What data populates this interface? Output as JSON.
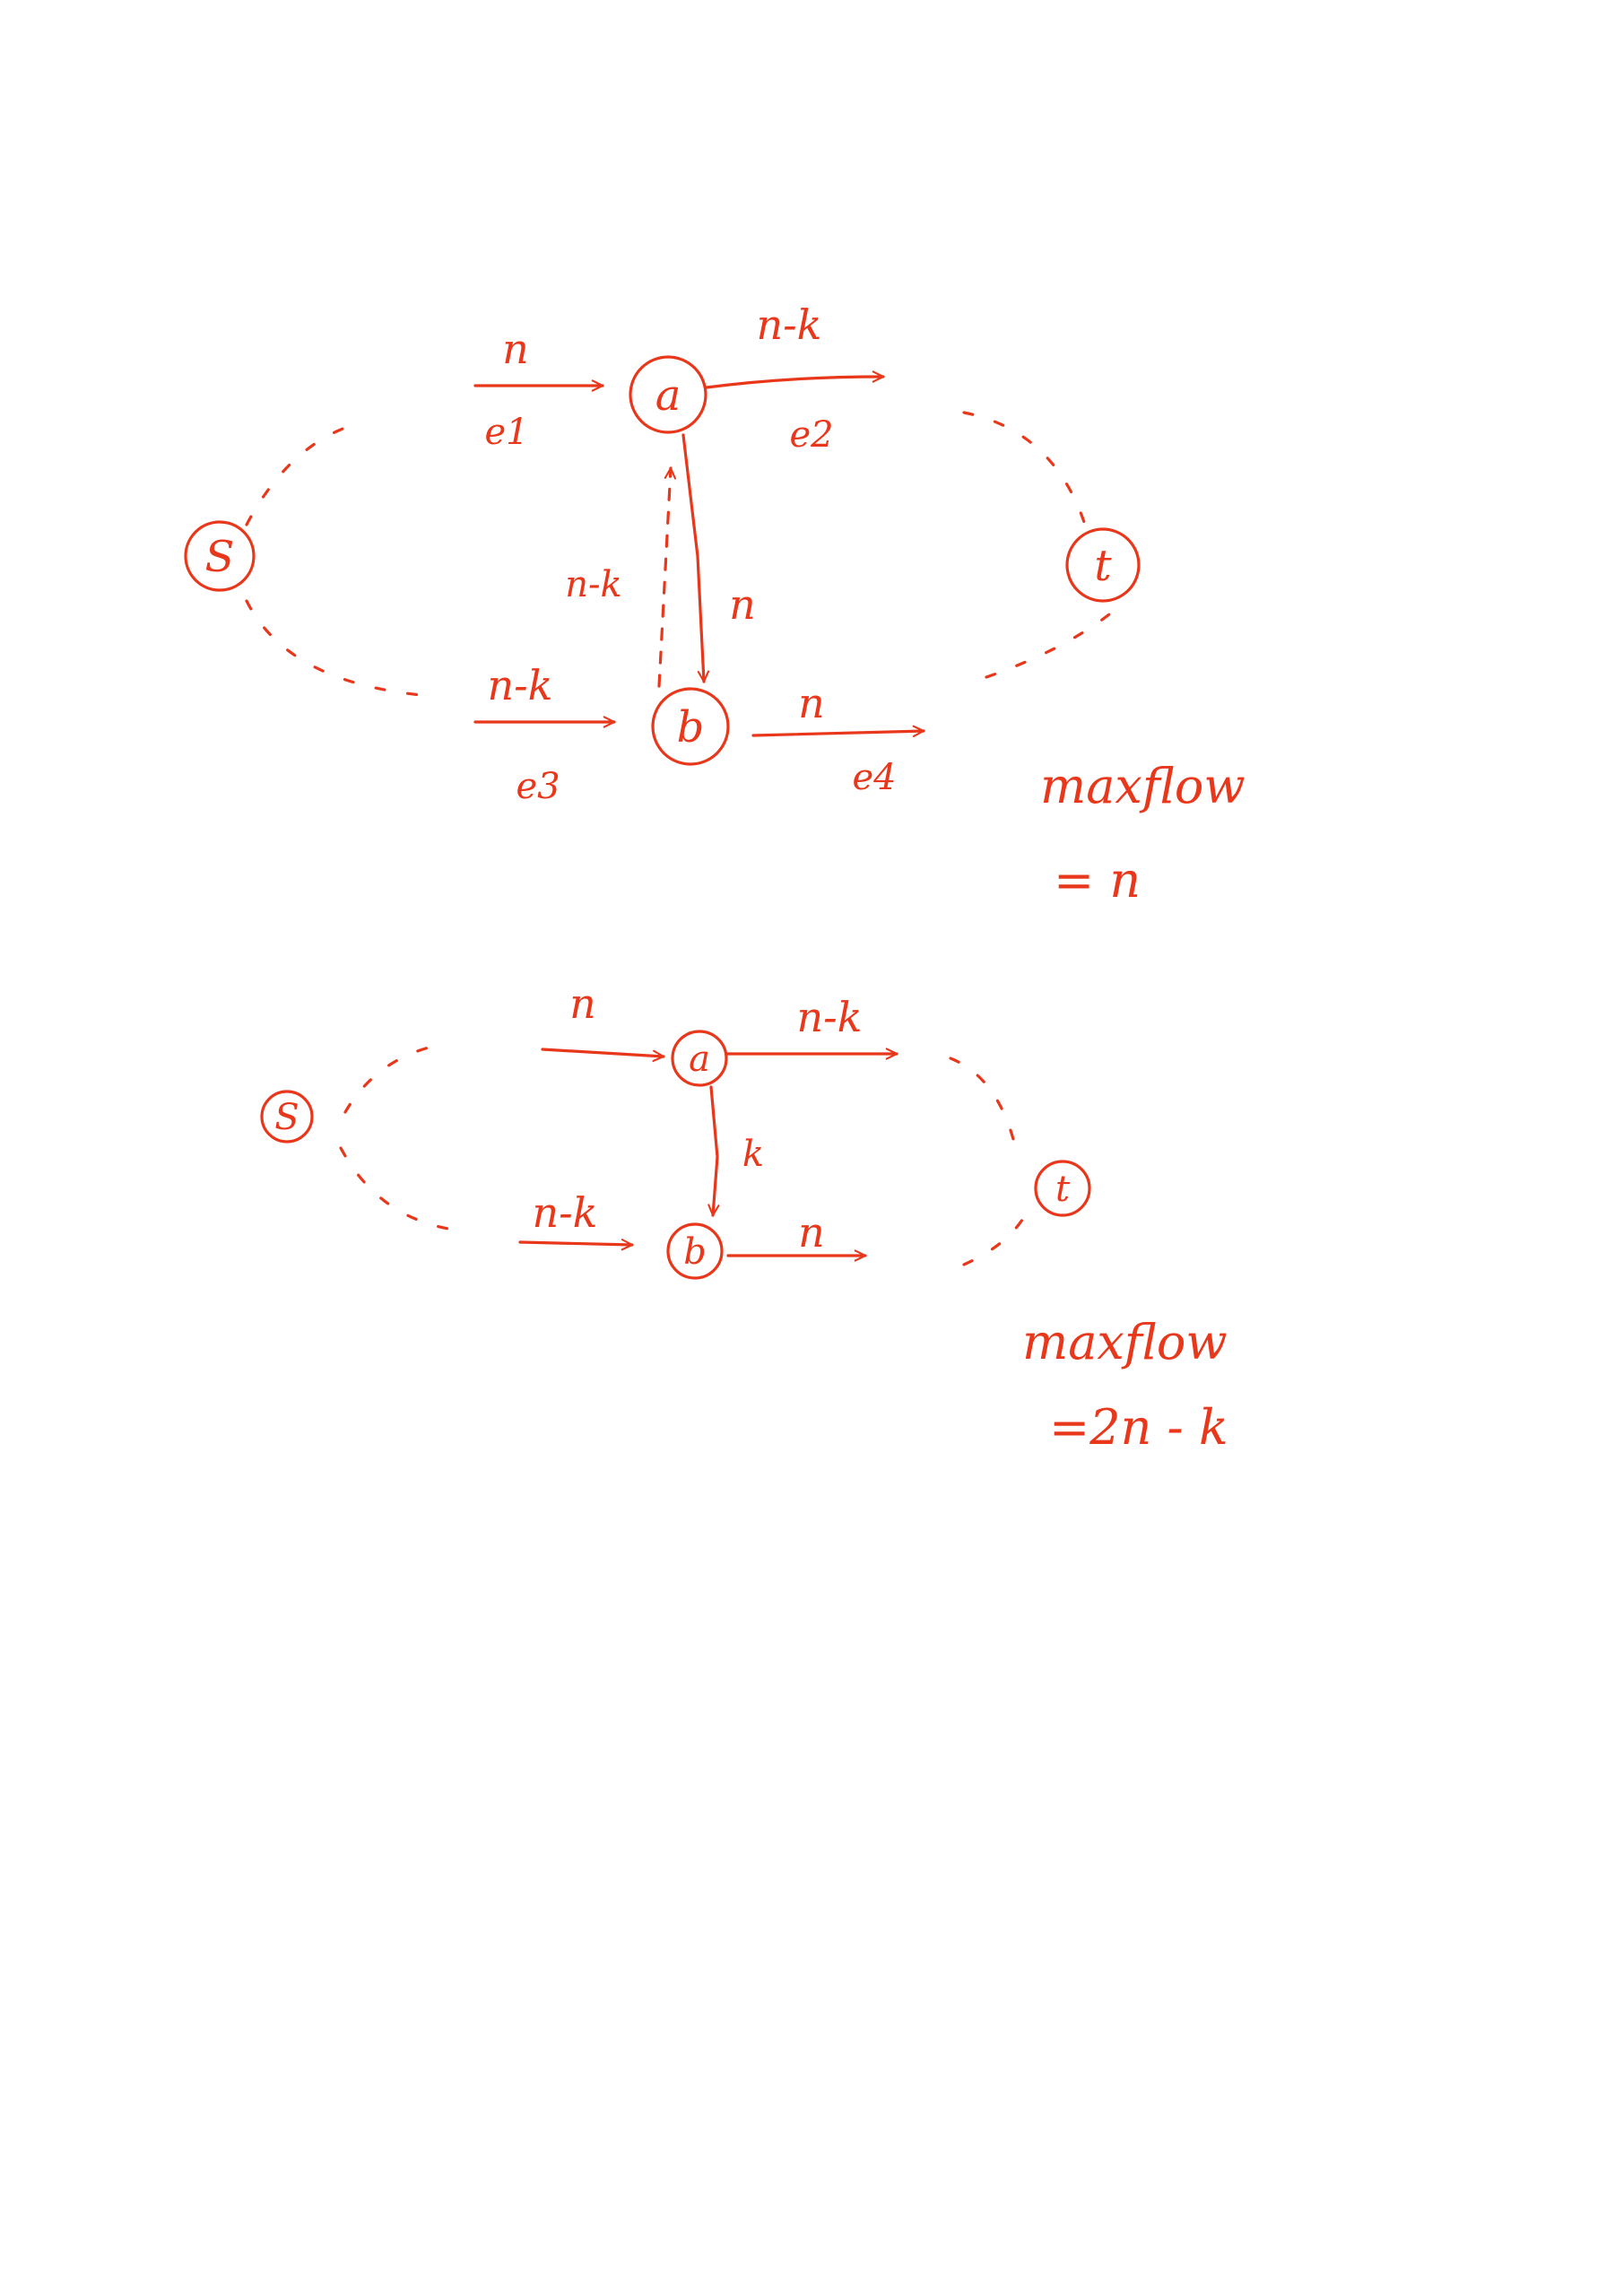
{
  "ink_color": "#e8371a",
  "diagrams": [
    {
      "id": "top",
      "nodes": {
        "s": "S",
        "a": "a",
        "b": "b",
        "t": "t"
      },
      "edges": {
        "sa": {
          "capacity": "n",
          "name": "e1"
        },
        "at": {
          "capacity": "n-k",
          "name": "e2"
        },
        "sb": {
          "capacity": "n-k",
          "name": "e3"
        },
        "bt": {
          "capacity": "n",
          "name": "e4"
        },
        "ab": {
          "capacity": "n"
        },
        "ba": {
          "capacity": "n-k"
        }
      },
      "note": {
        "line1": "maxflow",
        "line2": "= n"
      }
    },
    {
      "id": "bottom",
      "nodes": {
        "s": "S",
        "a": "a",
        "b": "b",
        "t": "t"
      },
      "edges": {
        "sa": {
          "capacity": "n"
        },
        "at": {
          "capacity": "n-k"
        },
        "sb": {
          "capacity": "n-k"
        },
        "bt": {
          "capacity": "n"
        },
        "ab": {
          "capacity": "k"
        }
      },
      "note": {
        "line1": "maxflow",
        "line2": "=2n - k"
      }
    }
  ]
}
